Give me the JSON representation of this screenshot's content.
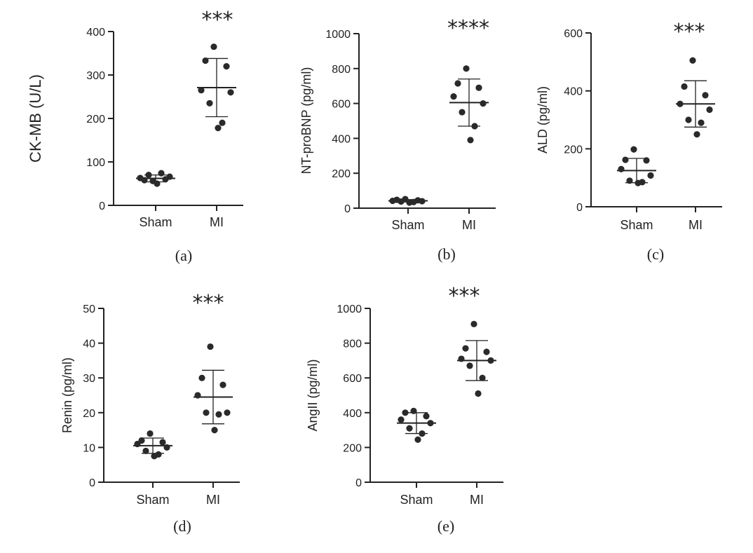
{
  "chart_data": [
    {
      "type": "scatter",
      "ylabel": "CK-MB (U/L)",
      "ylim": [
        0,
        400
      ],
      "yticks": [
        0,
        100,
        200,
        300,
        400
      ],
      "categories": [
        "Sham",
        "MI"
      ],
      "series": [
        {
          "category": "Sham",
          "values": [
            56,
            58,
            60,
            63,
            66,
            70,
            74,
            50
          ],
          "mean": 62,
          "sd": 8
        },
        {
          "category": "MI",
          "values": [
            365,
            333,
            320,
            265,
            260,
            235,
            190,
            178
          ],
          "mean": 271,
          "sd": 67
        }
      ],
      "significance": "***",
      "caption": "(a)"
    },
    {
      "type": "scatter",
      "ylabel": "NT-proBNP (pg/ml)",
      "ylim": [
        0,
        1000
      ],
      "yticks": [
        0,
        200,
        400,
        600,
        800,
        1000
      ],
      "categories": [
        "Sham",
        "MI"
      ],
      "series": [
        {
          "category": "Sham",
          "values": [
            52,
            48,
            45,
            42,
            40,
            38,
            35,
            32
          ],
          "mean": 42,
          "sd": 7
        },
        {
          "category": "MI",
          "values": [
            800,
            715,
            690,
            640,
            600,
            550,
            470,
            390
          ],
          "mean": 605,
          "sd": 135
        }
      ],
      "significance": "****",
      "caption": "(b)"
    },
    {
      "type": "scatter",
      "ylabel": "ALD (pg/ml)",
      "ylim": [
        0,
        600
      ],
      "yticks": [
        0,
        200,
        400,
        600
      ],
      "categories": [
        "Sham",
        "MI"
      ],
      "series": [
        {
          "category": "Sham",
          "values": [
            198,
            162,
            160,
            130,
            108,
            90,
            85,
            82
          ],
          "mean": 125,
          "sd": 42
        },
        {
          "category": "MI",
          "values": [
            505,
            415,
            385,
            355,
            335,
            300,
            290,
            250
          ],
          "mean": 355,
          "sd": 80
        }
      ],
      "significance": "***",
      "caption": "(c)"
    },
    {
      "type": "scatter",
      "ylabel": "Renin (pg/ml)",
      "ylim": [
        0,
        50
      ],
      "yticks": [
        0,
        10,
        20,
        30,
        40,
        50
      ],
      "categories": [
        "Sham",
        "MI"
      ],
      "series": [
        {
          "category": "Sham",
          "values": [
            14,
            12,
            11.5,
            11,
            10,
            9,
            8,
            7.5
          ],
          "mean": 10.5,
          "sd": 2.2
        },
        {
          "category": "MI",
          "values": [
            39,
            30,
            28,
            25,
            20,
            20,
            19.5,
            15
          ],
          "mean": 24.5,
          "sd": 7.7
        },
        {
          "category": "_",
          "values": []
        }
      ],
      "significance": "***",
      "caption": "(d)"
    },
    {
      "type": "scatter",
      "ylabel": "AngII (pg/ml)",
      "ylim": [
        0,
        1000
      ],
      "yticks": [
        0,
        200,
        400,
        600,
        800,
        1000
      ],
      "categories": [
        "Sham",
        "MI"
      ],
      "series": [
        {
          "category": "Sham",
          "values": [
            410,
            400,
            380,
            360,
            340,
            310,
            280,
            245
          ],
          "mean": 340,
          "sd": 60
        },
        {
          "category": "MI",
          "values": [
            910,
            770,
            750,
            710,
            700,
            670,
            600,
            510
          ],
          "mean": 700,
          "sd": 115
        }
      ],
      "significance": "***",
      "caption": "(e)"
    }
  ]
}
